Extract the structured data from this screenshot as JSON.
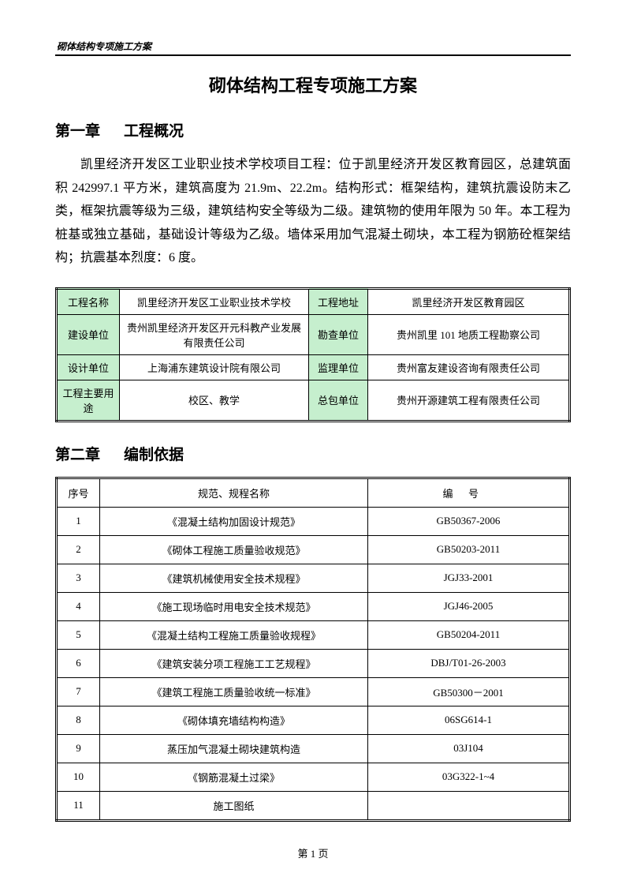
{
  "header": "砌体结构专项施工方案",
  "main_title": "砌体结构工程专项施工方案",
  "chapter1": {
    "label": "第一章",
    "title": "工程概况"
  },
  "body": "凯里经济开发区工业职业技术学校项目工程：位于凯里经济开发区教育园区，总建筑面积 242997.1 平方米，建筑高度为 21.9m、22.2m。结构形式：框架结构，建筑抗震设防末乙类，框架抗震等级为三级，建筑结构安全等级为二级。建筑物的使用年限为 50 年。本工程为桩基或独立基础，基础设计等级为乙级。墙体采用加气混凝土砌块，本工程为钢筋砼框架结构；抗震基本烈度：6 度。",
  "info_table": {
    "rows": [
      {
        "label1": "工程名称",
        "value1": "凯里经济开发区工业职业技术学校",
        "label2": "工程地址",
        "value2": "凯里经济开发区教育园区"
      },
      {
        "label1": "建设单位",
        "value1": "贵州凯里经济开发区开元科教产业发展有限责任公司",
        "label2": "勘查单位",
        "value2": "贵州凯里 101 地质工程勘察公司"
      },
      {
        "label1": "设计单位",
        "value1": "上海浦东建筑设计院有限公司",
        "label2": "监理单位",
        "value2": "贵州富友建设咨询有限责任公司"
      },
      {
        "label1": "工程主要用途",
        "value1": "校区、教学",
        "label2": "总包单位",
        "value2": "贵州开源建筑工程有限责任公司"
      }
    ]
  },
  "chapter2": {
    "label": "第二章",
    "title": "编制依据"
  },
  "standards_table": {
    "headers": {
      "seq": "序号",
      "name": "规范、规程名称",
      "code": "编号"
    },
    "rows": [
      {
        "seq": "1",
        "name": "《混凝土结构加固设计规范》",
        "code": "GB50367-2006"
      },
      {
        "seq": "2",
        "name": "《砌体工程施工质量验收规范》",
        "code": "GB50203-2011"
      },
      {
        "seq": "3",
        "name": "《建筑机械使用安全技术规程》",
        "code": "JGJ33-2001"
      },
      {
        "seq": "4",
        "name": "《施工现场临时用电安全技术规范》",
        "code": "JGJ46-2005"
      },
      {
        "seq": "5",
        "name": "《混凝土结构工程施工质量验收规程》",
        "code": "GB50204-2011"
      },
      {
        "seq": "6",
        "name": "《建筑安装分项工程施工工艺规程》",
        "code": "DBJ/T01-26-2003"
      },
      {
        "seq": "7",
        "name": "《建筑工程施工质量验收统一标准》",
        "code": "GB50300－2001"
      },
      {
        "seq": "8",
        "name": "《砌体填充墙结构构造》",
        "code": "06SG614-1"
      },
      {
        "seq": "9",
        "name": "蒸压加气混凝土砌块建筑构造",
        "code": "03J104"
      },
      {
        "seq": "10",
        "name": "《钢筋混凝土过梁》",
        "code": "03G322-1~4"
      },
      {
        "seq": "11",
        "name": "施工图纸",
        "code": ""
      }
    ]
  },
  "page_footer": "第 1 页"
}
